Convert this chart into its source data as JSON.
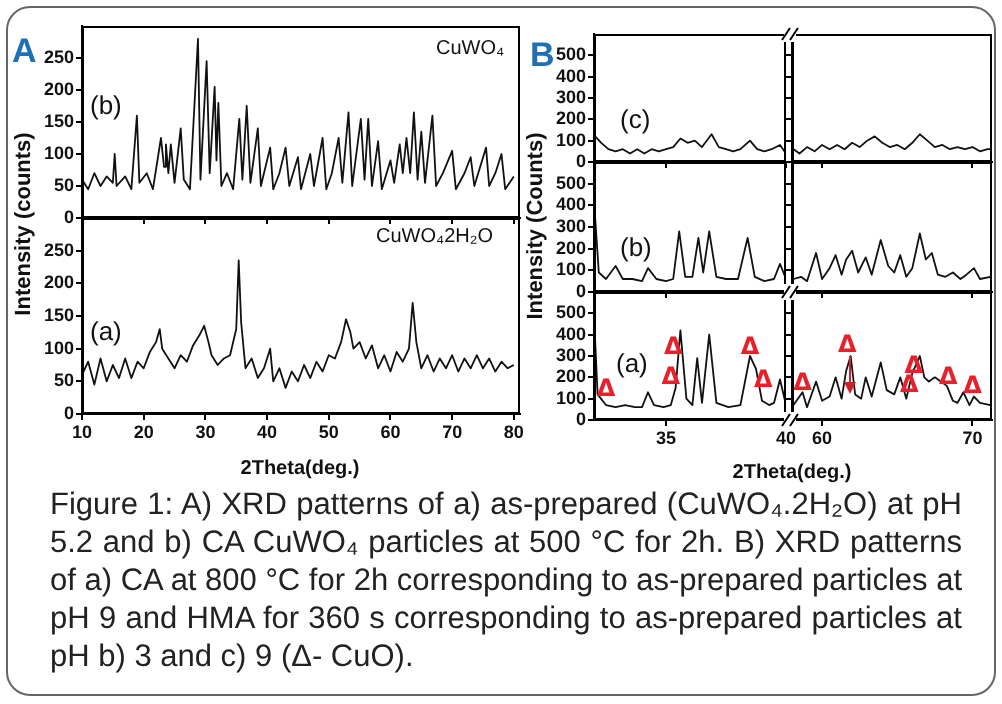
{
  "chart_data": [
    {
      "type": "line",
      "ylabel": "Intensity (counts)",
      "annotations": [
        "A",
        "CuWO₄"
      ],
      "xlim": [
        10,
        81
      ],
      "ylim": [
        0,
        300
      ],
      "xticks": [
        10,
        20,
        30,
        40,
        50,
        60,
        70,
        80
      ],
      "yticks": [
        0,
        50,
        100,
        150,
        200,
        250
      ],
      "tick_labels": "y",
      "series": [
        {
          "name": "(b)",
          "color": "#111111",
          "x": [
            10,
            11,
            12,
            13,
            14,
            15,
            15.3,
            15.6,
            17,
            18,
            18.9,
            19.3,
            20.5,
            21.5,
            22.8,
            23.3,
            23.6,
            24,
            24.4,
            25,
            26,
            26.5,
            27.5,
            28.8,
            29.2,
            30.2,
            30.7,
            31.5,
            31.8,
            32.1,
            32.6,
            33.5,
            34.5,
            35.5,
            36,
            36.7,
            37.3,
            38.5,
            39,
            40.5,
            41,
            42,
            43,
            43.6,
            45,
            45.5,
            47,
            47.6,
            49,
            49.6,
            50.5,
            51.6,
            52.2,
            53.2,
            53.8,
            55.2,
            55.8,
            56.4,
            57,
            58,
            58.6,
            60,
            60.6,
            61.5,
            62,
            62.6,
            63.2,
            63.8,
            64.4,
            65,
            65.6,
            66.8,
            67.4,
            68.5,
            70,
            70.6,
            72,
            73,
            73.6,
            75.5,
            76,
            77,
            78,
            78.6,
            80
          ],
          "values": [
            60,
            45,
            70,
            50,
            65,
            55,
            100,
            50,
            65,
            45,
            160,
            55,
            70,
            45,
            125,
            80,
            115,
            70,
            115,
            55,
            140,
            60,
            45,
            280,
            60,
            245,
            70,
            205,
            90,
            180,
            50,
            70,
            45,
            155,
            60,
            175,
            55,
            140,
            50,
            110,
            45,
            70,
            110,
            50,
            95,
            45,
            100,
            50,
            125,
            45,
            70,
            125,
            55,
            165,
            50,
            155,
            60,
            155,
            50,
            120,
            45,
            90,
            55,
            115,
            70,
            125,
            70,
            165,
            60,
            135,
            55,
            160,
            50,
            70,
            105,
            45,
            70,
            95,
            50,
            110,
            50,
            70,
            100,
            45,
            65
          ]
        }
      ]
    },
    {
      "type": "line",
      "xlabel": "2Theta(deg.)",
      "annotations": [
        "CuWO₄2H₂O"
      ],
      "xlim": [
        10,
        81
      ],
      "ylim": [
        0,
        300
      ],
      "xticks": [
        10,
        20,
        30,
        40,
        50,
        60,
        70,
        80
      ],
      "yticks": [
        0,
        50,
        100,
        150,
        200,
        250
      ],
      "series": [
        {
          "name": "(a)",
          "color": "#111111",
          "x": [
            10,
            11,
            12,
            13,
            14,
            15,
            16,
            17,
            18,
            19,
            20,
            21,
            22,
            22.6,
            23,
            24,
            25,
            26,
            27,
            28,
            29,
            29.8,
            30.5,
            31,
            32,
            33,
            34,
            35,
            35.4,
            35.8,
            36.5,
            37.5,
            38.5,
            39.5,
            40.5,
            41,
            42,
            43,
            44,
            45,
            46,
            47,
            48,
            49,
            50,
            51,
            52,
            52.8,
            53.5,
            54,
            55,
            56,
            57,
            58,
            59,
            60,
            61,
            62,
            63,
            63.6,
            64.2,
            65,
            66,
            67,
            68,
            69,
            70,
            71,
            72,
            73,
            74,
            75,
            76,
            77,
            78,
            79,
            80
          ],
          "values": [
            60,
            80,
            45,
            85,
            50,
            75,
            55,
            85,
            55,
            80,
            70,
            95,
            110,
            130,
            100,
            85,
            70,
            90,
            80,
            105,
            120,
            135,
            110,
            90,
            75,
            85,
            90,
            130,
            235,
            140,
            70,
            85,
            55,
            70,
            100,
            50,
            70,
            40,
            65,
            50,
            75,
            55,
            80,
            65,
            90,
            85,
            110,
            145,
            125,
            100,
            110,
            85,
            105,
            70,
            90,
            65,
            95,
            80,
            100,
            170,
            110,
            70,
            90,
            65,
            85,
            70,
            90,
            65,
            85,
            70,
            90,
            70,
            85,
            65,
            80,
            70,
            75
          ]
        }
      ]
    },
    {
      "type": "line",
      "ylabel": "Intensity (Counts)",
      "annotations": [
        "B"
      ],
      "xlim": [
        32,
        40
      ],
      "ylim": [
        0,
        600
      ],
      "xticks": [
        35,
        40
      ],
      "yticks": [
        0,
        100,
        200,
        300,
        400,
        500
      ],
      "tick_labels": "y",
      "series": [
        {
          "name": "(c)",
          "color": "#111111",
          "x": [
            32.05,
            32.3,
            32.6,
            32.9,
            33.2,
            33.5,
            33.8,
            34.1,
            34.4,
            34.7,
            35,
            35.3,
            35.6,
            35.9,
            36.2,
            36.5,
            36.9,
            37.2,
            37.5,
            37.8,
            38.1,
            38.5,
            38.8,
            39.1,
            39.4,
            39.75,
            40
          ],
          "values": [
            120,
            90,
            60,
            50,
            60,
            40,
            60,
            40,
            60,
            50,
            60,
            70,
            110,
            90,
            100,
            70,
            130,
            70,
            60,
            50,
            60,
            100,
            60,
            50,
            60,
            80,
            40
          ]
        }
      ]
    },
    {
      "type": "line",
      "xlim": [
        58,
        71.3
      ],
      "ylim": [
        0,
        600
      ],
      "xticks": [
        60,
        70
      ],
      "yticks": [
        0,
        100,
        200,
        300,
        400,
        500
      ],
      "tick_labels": false,
      "series": [
        {
          "color": "#111111",
          "x": [
            58.1,
            58.5,
            59,
            59.5,
            60,
            60.5,
            61,
            61.5,
            62,
            62.5,
            63,
            63.5,
            64,
            64.5,
            65,
            65.5,
            66,
            66.5,
            67,
            67.5,
            68,
            68.5,
            69,
            69.5,
            70,
            70.5,
            71,
            71.2
          ],
          "values": [
            60,
            40,
            70,
            50,
            80,
            60,
            80,
            60,
            90,
            70,
            100,
            120,
            90,
            70,
            80,
            60,
            90,
            130,
            100,
            70,
            80,
            60,
            70,
            60,
            70,
            50,
            60,
            60
          ]
        }
      ]
    },
    {
      "type": "line",
      "xlim": [
        32,
        40
      ],
      "ylim": [
        0,
        600
      ],
      "xticks": [
        35,
        40
      ],
      "yticks": [
        0,
        100,
        200,
        300,
        400,
        500
      ],
      "tick_labels": "y",
      "series": [
        {
          "name": "(b)",
          "color": "#111111",
          "x": [
            32.05,
            32.2,
            32.5,
            32.9,
            33.2,
            33.6,
            34,
            34.25,
            34.6,
            35,
            35.3,
            35.55,
            35.8,
            36.1,
            36.35,
            36.55,
            36.8,
            37.1,
            37.5,
            38,
            38.4,
            38.7,
            39.1,
            39.5,
            39.75,
            40
          ],
          "values": [
            340,
            90,
            60,
            120,
            60,
            60,
            50,
            110,
            60,
            50,
            60,
            280,
            70,
            70,
            250,
            90,
            280,
            70,
            60,
            60,
            250,
            70,
            50,
            60,
            130,
            60
          ]
        }
      ]
    },
    {
      "type": "line",
      "xlim": [
        58,
        71.3
      ],
      "ylim": [
        0,
        600
      ],
      "xticks": [
        60,
        70
      ],
      "yticks": [
        0,
        100,
        200,
        300,
        400,
        500
      ],
      "tick_labels": false,
      "series": [
        {
          "color": "#111111",
          "x": [
            58.1,
            58.6,
            59,
            59.6,
            60,
            60.5,
            60.9,
            61.3,
            61.6,
            62,
            62.4,
            62.9,
            63.3,
            63.9,
            64.4,
            64.8,
            65.2,
            65.6,
            66,
            66.5,
            66.9,
            67.3,
            67.7,
            68.2,
            68.7,
            69.2,
            69.6,
            70.1,
            70.5,
            71.2
          ],
          "values": [
            60,
            70,
            50,
            180,
            60,
            110,
            170,
            80,
            150,
            190,
            90,
            160,
            80,
            240,
            120,
            90,
            170,
            70,
            110,
            270,
            150,
            180,
            80,
            70,
            90,
            60,
            80,
            110,
            60,
            70
          ]
        }
      ]
    },
    {
      "type": "line",
      "xlabel": "2Theta(deg.)",
      "annotations": [
        {
          "text": "Δ",
          "x": 32.5,
          "y": 140
        },
        {
          "text": "Δ",
          "x": 35.2,
          "y": 200
        },
        {
          "text": "Δ",
          "x": 35.3,
          "y": 340
        },
        {
          "text": "Δ",
          "x": 38.5,
          "y": 340
        },
        {
          "text": "Δ",
          "x": 39.05,
          "y": 185
        }
      ],
      "xlim": [
        32,
        40
      ],
      "ylim": [
        0,
        600
      ],
      "xticks": [
        35,
        40
      ],
      "yticks": [
        0,
        100,
        200,
        300,
        400,
        500
      ],
      "series": [
        {
          "name": "(a)",
          "color": "#111111",
          "x": [
            32.02,
            32.15,
            32.5,
            32.9,
            33.3,
            33.7,
            34,
            34.25,
            34.5,
            34.9,
            35.2,
            35.4,
            35.6,
            35.85,
            36.1,
            36.3,
            36.5,
            36.8,
            37.1,
            37.6,
            38.1,
            38.5,
            38.75,
            39,
            39.3,
            39.5,
            39.75,
            40
          ],
          "values": [
            440,
            120,
            70,
            60,
            70,
            60,
            60,
            130,
            70,
            60,
            70,
            150,
            420,
            100,
            70,
            290,
            80,
            400,
            80,
            60,
            70,
            300,
            240,
            90,
            70,
            80,
            190,
            70
          ]
        }
      ]
    },
    {
      "type": "line",
      "annotations": [
        "Figure 1: A) XRD patterns of a) as-prepared (CuWO₄.2H₂O) at pH 5.2 and b) CA CuWO₄ particles at 500 °C for 2h. B) XRD patterns of a) CA at 800 °C for 2h corresponding to as-prepared particles at pH 9 and HMA for 360 s corresponding to as-prepared particles at pH b) 3 and c) 9 (Δ- CuO).",
        "Δ",
        {
          "text": "Δ",
          "x": 58.7,
          "y": 170
        },
        {
          "text": "Δ",
          "x": 65.8,
          "y": 160
        },
        {
          "text": "Δ",
          "x": 66.1,
          "y": 250
        },
        {
          "text": "Δ",
          "x": 68.4,
          "y": 200
        },
        {
          "text": "Δ",
          "x": 70.0,
          "y": 155
        }
      ],
      "xlim": [
        58,
        71.3
      ],
      "ylim": [
        0,
        600
      ],
      "xticks": [
        60,
        70
      ],
      "yticks": [
        0,
        100,
        200,
        300,
        400,
        500
      ],
      "tick_labels": "x",
      "series": [
        {
          "color": "#111111",
          "x": [
            58.1,
            58.7,
            59,
            59.6,
            60,
            60.5,
            60.9,
            61.3,
            61.6,
            61.9,
            62.2,
            62.6,
            62.9,
            63.3,
            63.9,
            64.3,
            64.8,
            65.2,
            65.6,
            66,
            66.5,
            66.8,
            67.1,
            67.5,
            68.3,
            68.7,
            69,
            69.4,
            69.8,
            70.1,
            70.5,
            71.2
          ],
          "values": [
            70,
            130,
            60,
            180,
            90,
            110,
            200,
            100,
            230,
            300,
            120,
            100,
            200,
            110,
            270,
            140,
            120,
            200,
            100,
            220,
            300,
            200,
            180,
            200,
            160,
            90,
            80,
            130,
            70,
            110,
            80,
            70
          ]
        }
      ]
    }
  ]
}
